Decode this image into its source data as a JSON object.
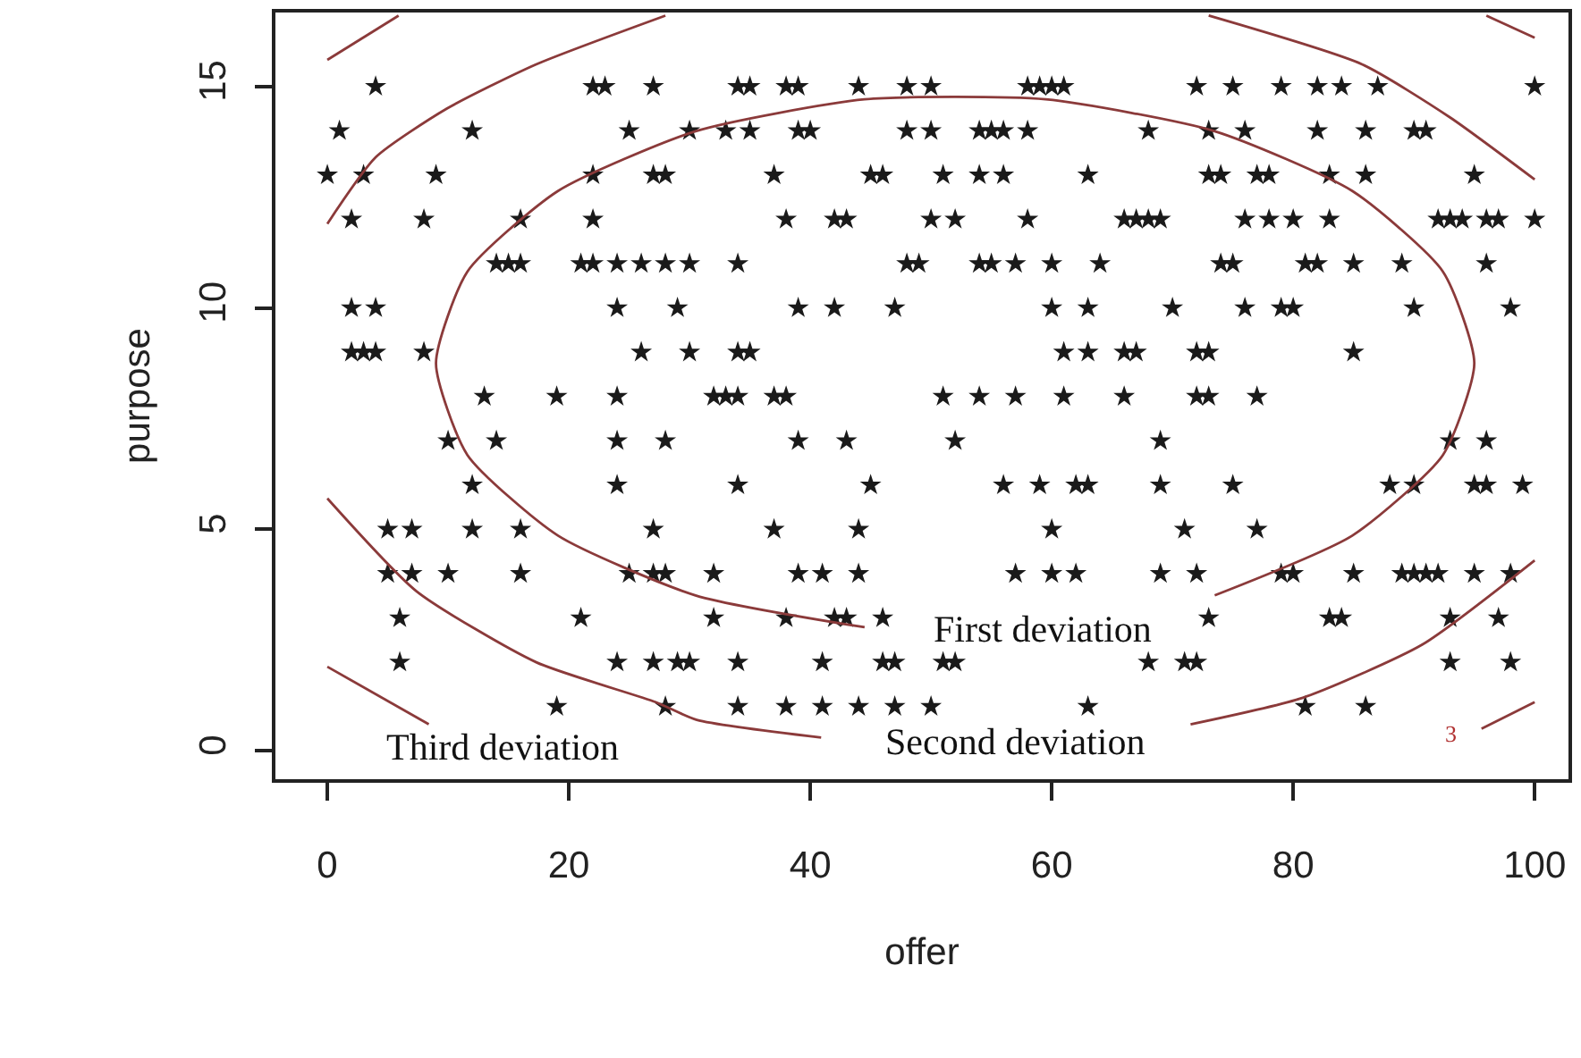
{
  "chart_data": {
    "type": "scatter",
    "xlabel": "offer",
    "ylabel": "purpose",
    "xlim": [
      -4.3,
      102.8
    ],
    "ylim": [
      -0.64,
      16.67
    ],
    "xticks": [
      0,
      20,
      40,
      60,
      80,
      100
    ],
    "yticks": [
      0,
      5,
      10,
      15
    ],
    "grid": false,
    "marker": "star",
    "line_style": "solid",
    "series": [
      {
        "color": "#1a1a1a",
        "x": [
          4,
          22,
          23,
          27,
          34,
          35,
          38,
          39,
          44,
          48,
          50,
          58,
          59,
          60,
          61,
          72,
          75,
          79,
          82,
          84,
          87,
          100
        ],
        "values": [
          15,
          15,
          15,
          15,
          15,
          15,
          15,
          15,
          15,
          15,
          15,
          15,
          15,
          15,
          15,
          15,
          15,
          15,
          15,
          15,
          15,
          15
        ]
      },
      {
        "color": "#1a1a1a",
        "x": [
          1,
          12,
          25,
          30,
          33,
          35,
          39,
          40,
          48,
          50,
          54,
          55,
          56,
          58,
          68,
          73,
          76,
          82,
          86,
          90,
          91
        ],
        "values": [
          14,
          14,
          14,
          14,
          14,
          14,
          14,
          14,
          14,
          14,
          14,
          14,
          14,
          14,
          14,
          14,
          14,
          14,
          14,
          14,
          14
        ]
      },
      {
        "color": "#1a1a1a",
        "x": [
          0,
          3,
          9,
          22,
          27,
          28,
          37,
          45,
          46,
          51,
          54,
          56,
          63,
          73,
          74,
          77,
          78,
          83,
          86,
          95
        ],
        "values": [
          13,
          13,
          13,
          13,
          13,
          13,
          13,
          13,
          13,
          13,
          13,
          13,
          13,
          13,
          13,
          13,
          13,
          13,
          13,
          13
        ]
      },
      {
        "color": "#1a1a1a",
        "x": [
          2,
          8,
          16,
          22,
          38,
          42,
          43,
          50,
          52,
          58,
          66,
          67,
          68,
          69,
          76,
          78,
          80,
          83,
          92,
          93,
          94,
          96,
          97,
          100
        ],
        "values": [
          12,
          12,
          12,
          12,
          12,
          12,
          12,
          12,
          12,
          12,
          12,
          12,
          12,
          12,
          12,
          12,
          12,
          12,
          12,
          12,
          12,
          12,
          12,
          12
        ]
      },
      {
        "color": "#1a1a1a",
        "x": [
          14,
          15,
          16,
          21,
          22,
          24,
          26,
          28,
          30,
          34,
          48,
          49,
          54,
          55,
          57,
          60,
          64,
          74,
          75,
          81,
          82,
          85,
          89,
          96
        ],
        "values": [
          11,
          11,
          11,
          11,
          11,
          11,
          11,
          11,
          11,
          11,
          11,
          11,
          11,
          11,
          11,
          11,
          11,
          11,
          11,
          11,
          11,
          11,
          11,
          11
        ]
      },
      {
        "color": "#1a1a1a",
        "x": [
          2,
          4,
          24,
          29,
          39,
          42,
          47,
          60,
          63,
          70,
          76,
          79,
          80,
          90,
          98
        ],
        "values": [
          10,
          10,
          10,
          10,
          10,
          10,
          10,
          10,
          10,
          10,
          10,
          10,
          10,
          10,
          10
        ]
      },
      {
        "color": "#1a1a1a",
        "x": [
          2,
          3,
          4,
          8,
          26,
          30,
          34,
          35,
          61,
          63,
          66,
          67,
          72,
          73,
          85
        ],
        "values": [
          9,
          9,
          9,
          9,
          9,
          9,
          9,
          9,
          9,
          9,
          9,
          9,
          9,
          9,
          9
        ]
      },
      {
        "color": "#1a1a1a",
        "x": [
          13,
          19,
          24,
          32,
          33,
          34,
          37,
          38,
          51,
          54,
          57,
          61,
          66,
          72,
          73,
          77
        ],
        "values": [
          8,
          8,
          8,
          8,
          8,
          8,
          8,
          8,
          8,
          8,
          8,
          8,
          8,
          8,
          8,
          8
        ]
      },
      {
        "color": "#1a1a1a",
        "x": [
          10,
          14,
          24,
          28,
          39,
          43,
          52,
          69,
          93,
          96
        ],
        "values": [
          7,
          7,
          7,
          7,
          7,
          7,
          7,
          7,
          7,
          7
        ]
      },
      {
        "color": "#1a1a1a",
        "x": [
          12,
          24,
          34,
          45,
          56,
          59,
          62,
          63,
          69,
          75,
          88,
          90,
          95,
          96,
          99
        ],
        "values": [
          6,
          6,
          6,
          6,
          6,
          6,
          6,
          6,
          6,
          6,
          6,
          6,
          6,
          6,
          6
        ]
      },
      {
        "color": "#1a1a1a",
        "x": [
          5,
          7,
          12,
          16,
          27,
          37,
          44,
          60,
          71,
          77
        ],
        "values": [
          5,
          5,
          5,
          5,
          5,
          5,
          5,
          5,
          5,
          5
        ]
      },
      {
        "color": "#1a1a1a",
        "x": [
          5,
          7,
          10,
          16,
          25,
          27,
          28,
          32,
          39,
          41,
          44,
          57,
          60,
          62,
          69,
          72,
          79,
          80,
          85,
          89,
          90,
          91,
          92,
          95,
          98
        ],
        "values": [
          4,
          4,
          4,
          4,
          4,
          4,
          4,
          4,
          4,
          4,
          4,
          4,
          4,
          4,
          4,
          4,
          4,
          4,
          4,
          4,
          4,
          4,
          4,
          4,
          4
        ]
      },
      {
        "color": "#1a1a1a",
        "x": [
          6,
          21,
          32,
          38,
          42,
          43,
          46,
          73,
          83,
          84,
          93,
          97
        ],
        "values": [
          3,
          3,
          3,
          3,
          3,
          3,
          3,
          3,
          3,
          3,
          3,
          3
        ]
      },
      {
        "color": "#1a1a1a",
        "x": [
          6,
          24,
          27,
          29,
          30,
          34,
          41,
          46,
          47,
          51,
          52,
          68,
          71,
          72,
          93,
          98
        ],
        "values": [
          2,
          2,
          2,
          2,
          2,
          2,
          2,
          2,
          2,
          2,
          2,
          2,
          2,
          2,
          2,
          2
        ]
      },
      {
        "color": "#1a1a1a",
        "x": [
          19,
          28,
          34,
          38,
          41,
          44,
          47,
          50,
          63,
          81,
          86
        ],
        "values": [
          1,
          1,
          1,
          1,
          1,
          1,
          1,
          1,
          1,
          1,
          1
        ]
      },
      {
        "type": "line",
        "marker": "none",
        "color": "#8b3a3a",
        "x": [
          73.5,
          84.9,
          92.4,
          95,
          92.4,
          84.9,
          73.5,
          59.5,
          44.5,
          30.5,
          19.1,
          11.6,
          9,
          11.6,
          19.1,
          30.5,
          44.5
        ],
        "values": [
          3.51,
          4.86,
          6.68,
          8.75,
          10.82,
          12.64,
          13.99,
          14.71,
          14.71,
          13.99,
          12.64,
          10.82,
          8.75,
          6.68,
          4.86,
          3.51,
          2.79
        ]
      },
      {
        "type": "line",
        "marker": "none",
        "color": "#8b3a3a",
        "x": [
          0,
          4,
          9.9,
          17.3,
          28,
          null,
          73,
          85.7,
          93,
          100,
          null,
          0,
          7.4,
          17.3,
          27.2,
          30.6,
          40.9,
          null,
          71.5,
          80.8,
          90.7,
          100
        ],
        "values": [
          11.9,
          13.4,
          14.5,
          15.5,
          16.6,
          null,
          16.6,
          15.5,
          14.3,
          12.9,
          null,
          5.7,
          3.6,
          2.0,
          1.1,
          0.7,
          0.3,
          null,
          0.6,
          1.2,
          2.4,
          4.3
        ]
      },
      {
        "type": "line",
        "marker": "none",
        "color": "#8b3a3a",
        "x": [
          0,
          5.9,
          null,
          96,
          100,
          null,
          0,
          8.4,
          null,
          95.6,
          100
        ],
        "values": [
          15.6,
          16.6,
          null,
          16.6,
          16.1,
          null,
          1.9,
          0.6,
          null,
          0.5,
          1.1
        ]
      }
    ],
    "annotations": [
      "First deviation",
      "Second deviation",
      "Third deviation",
      "3"
    ]
  }
}
